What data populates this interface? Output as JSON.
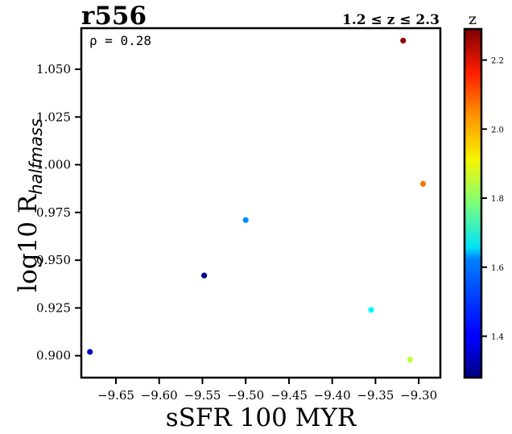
{
  "chart_data": {
    "type": "scatter",
    "title": "r556",
    "subtitle": "1.2 ≤ z ≤ 2.3",
    "xlabel": "sSFR 100 MYR",
    "ylabel_main": "log10 R",
    "ylabel_sub": "halfmass",
    "annotation": "ρ = 0.28",
    "xlim": [
      -9.69,
      -9.275
    ],
    "ylim": [
      0.8885,
      1.0715
    ],
    "xticks": [
      -9.65,
      -9.6,
      -9.55,
      -9.5,
      -9.45,
      -9.4,
      -9.35,
      -9.3
    ],
    "xtick_labels": [
      "−9.65",
      "−9.60",
      "−9.55",
      "−9.50",
      "−9.45",
      "−9.40",
      "−9.35",
      "−9.30"
    ],
    "yticks": [
      0.9,
      0.925,
      0.95,
      0.975,
      1.0,
      1.025,
      1.05
    ],
    "ytick_labels": [
      "0.900",
      "0.925",
      "0.950",
      "0.975",
      "1.000",
      "1.025",
      "1.050"
    ],
    "points": [
      {
        "x": -9.68,
        "y": 0.902,
        "z": 1.35
      },
      {
        "x": -9.548,
        "y": 0.942,
        "z": 1.3
      },
      {
        "x": -9.5,
        "y": 0.971,
        "z": 1.55
      },
      {
        "x": -9.355,
        "y": 0.924,
        "z": 1.65
      },
      {
        "x": -9.318,
        "y": 1.065,
        "z": 2.27
      },
      {
        "x": -9.31,
        "y": 0.898,
        "z": 1.85
      },
      {
        "x": -9.295,
        "y": 0.99,
        "z": 2.05
      }
    ],
    "colorbar": {
      "label": "z",
      "colormap": "jet",
      "range": [
        1.28,
        2.29
      ],
      "ticks": [
        1.4,
        1.6,
        1.8,
        2.0,
        2.2
      ],
      "tick_labels": [
        "1.4",
        "1.6",
        "1.8",
        "2.0",
        "2.2"
      ]
    },
    "grid": false
  }
}
